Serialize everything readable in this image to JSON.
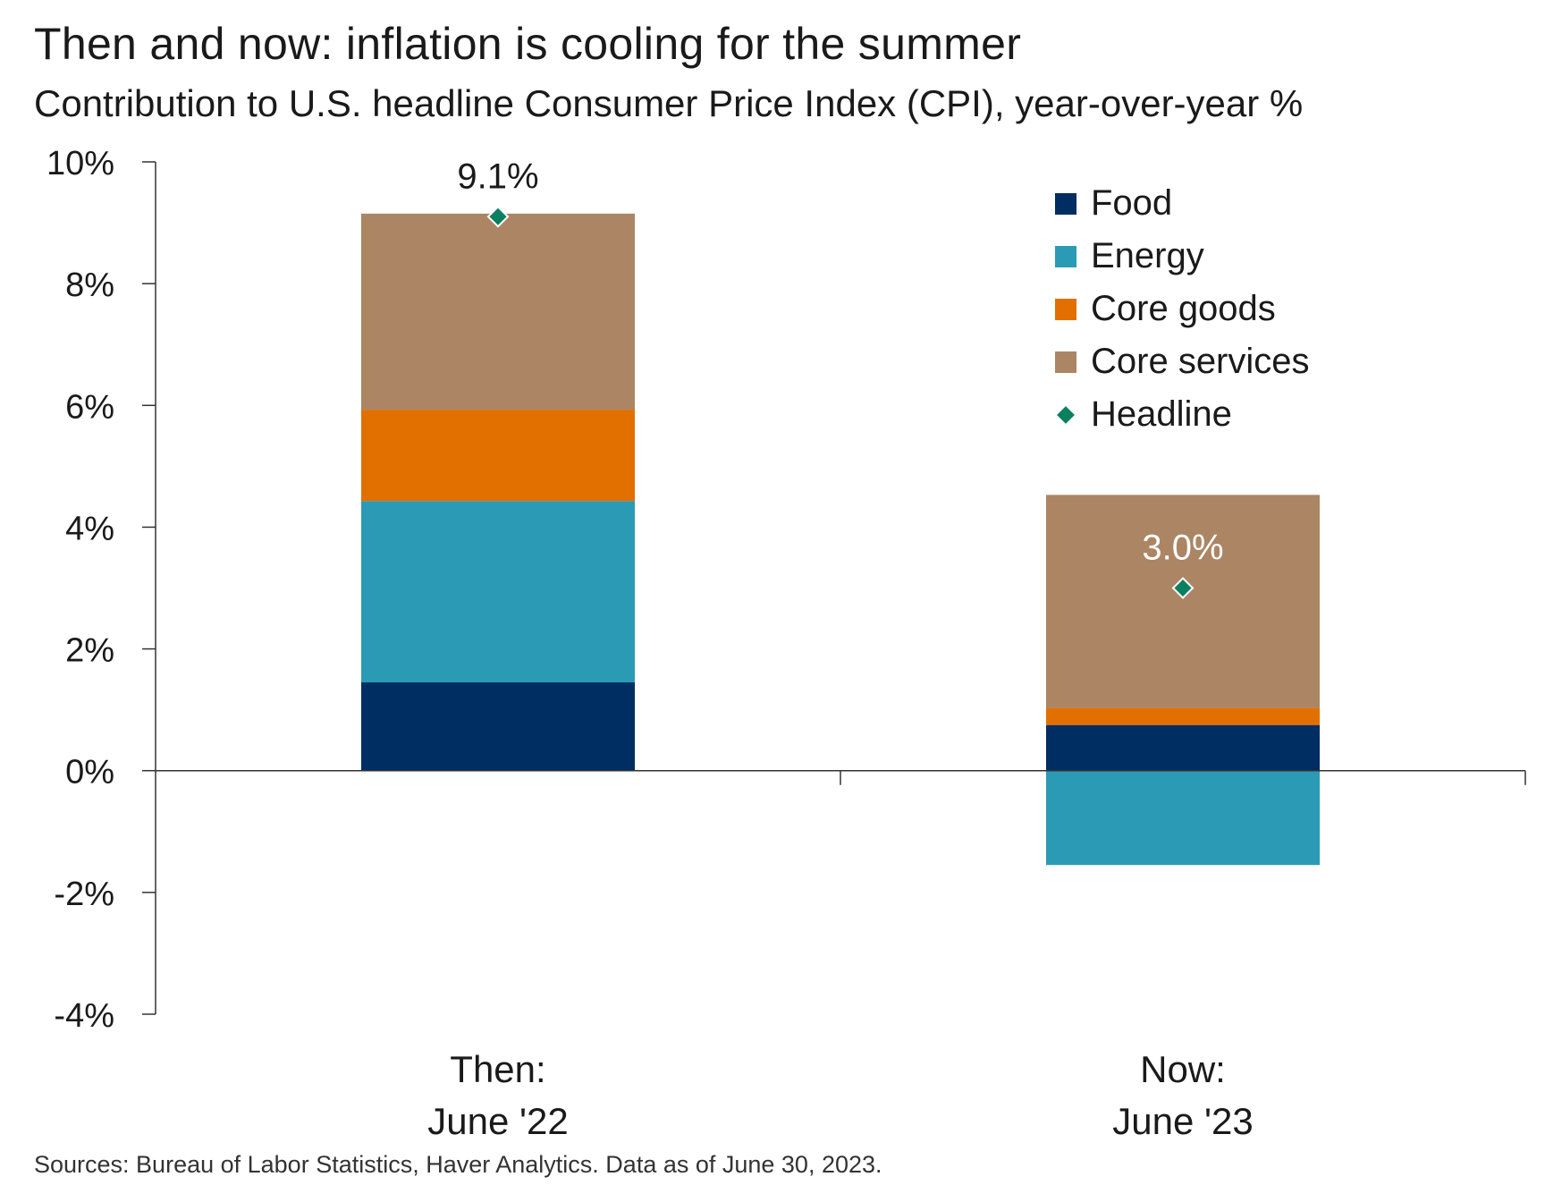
{
  "title": "Then and now: inflation is cooling for the summer",
  "subtitle": "Contribution to U.S. headline Consumer Price Index (CPI), year-over-year %",
  "source": "Sources: Bureau of Labor Statistics, Haver Analytics. Data as of June 30, 2023.",
  "legend": {
    "items": [
      {
        "label": "Food",
        "color": "#002d62",
        "kind": "square"
      },
      {
        "label": "Energy",
        "color": "#2b9bb5",
        "kind": "square"
      },
      {
        "label": "Core goods",
        "color": "#e27000",
        "kind": "square"
      },
      {
        "label": "Core services",
        "color": "#ac8564",
        "kind": "square"
      },
      {
        "label": "Headline",
        "color": "#0a8060",
        "kind": "diamond"
      }
    ]
  },
  "chart_data": {
    "type": "bar",
    "stacked": true,
    "categories": [
      [
        "Then:",
        "June '22"
      ],
      [
        "Now:",
        "June '23"
      ]
    ],
    "series": [
      {
        "name": "Food",
        "color": "#002d62",
        "values": [
          1.45,
          0.75
        ]
      },
      {
        "name": "Energy",
        "color": "#2b9bb5",
        "values": [
          2.98,
          -1.55
        ]
      },
      {
        "name": "Core goods",
        "color": "#e27000",
        "values": [
          1.5,
          0.28
        ]
      },
      {
        "name": "Core services",
        "color": "#ac8564",
        "values": [
          3.22,
          3.5
        ]
      }
    ],
    "headline": {
      "name": "Headline",
      "color": "#0a8060",
      "values": [
        9.1,
        3.0
      ],
      "labels": [
        "9.1%",
        "3.0%"
      ]
    },
    "ylim": [
      -4,
      10
    ],
    "yticks": [
      10,
      8,
      6,
      4,
      2,
      0,
      -2,
      -4
    ],
    "ytick_labels": [
      "10%",
      "8%",
      "6%",
      "4%",
      "2%",
      "0%",
      "-2%",
      "-4%"
    ],
    "grid": false,
    "legend_position": "top-right",
    "xlabel": "",
    "ylabel": ""
  }
}
